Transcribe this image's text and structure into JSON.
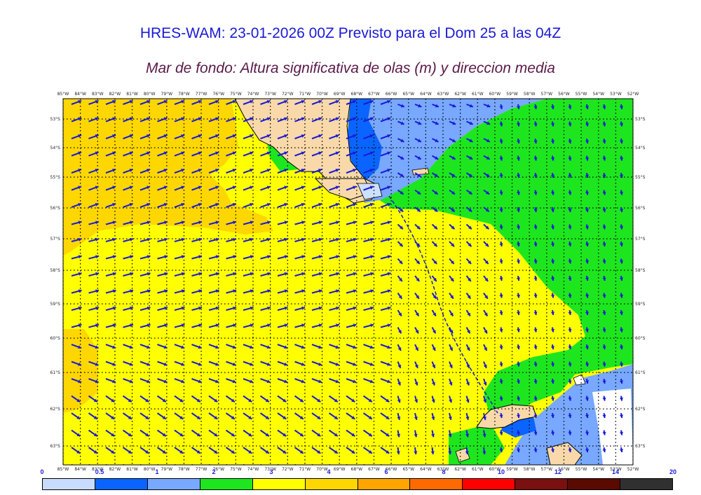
{
  "header": {
    "title": "HRES-WAM: 23-01-2026 00Z Previsto para el Dom 25 a las 04Z",
    "subtitle": "Mar de fondo: Altura significativa de olas (m) y direccion media"
  },
  "map": {
    "lon_labels": [
      "85°W",
      "84°W",
      "83°W",
      "82°W",
      "81°W",
      "80°W",
      "79°W",
      "78°W",
      "77°W",
      "76°W",
      "75°W",
      "74°W",
      "73°W",
      "72°W",
      "71°W",
      "70°W",
      "69°W",
      "68°W",
      "67°W",
      "66°W",
      "65°W",
      "64°W",
      "63°W",
      "62°W",
      "61°W",
      "60°W",
      "59°W",
      "58°W",
      "57°W",
      "56°W",
      "55°W",
      "54°W",
      "53°W",
      "52°W"
    ],
    "lat_labels": [
      "53°S",
      "54°S",
      "55°S",
      "56°S",
      "57°S",
      "58°S",
      "59°S",
      "60°S",
      "61°S",
      "62°S",
      "63°S"
    ],
    "colors": {
      "land": "#f9d9a9",
      "green": "#1ee61e",
      "yellow": "#ffff00",
      "gold": "#ffd700",
      "lightblue": "#78a8ff",
      "blue": "#0a64ff",
      "paleblue": "#cce0ff",
      "arrow": "#1a1ad6"
    }
  },
  "colorbar": {
    "labels": [
      "0",
      "0.5",
      "1",
      "2",
      "3",
      "4",
      "6",
      "8",
      "10",
      "12",
      "14",
      "20"
    ],
    "colors": [
      "#c8dcff",
      "#0a64ff",
      "#78a8ff",
      "#1ee61e",
      "#ffff00",
      "#ffd700",
      "#ffa500",
      "#ff6a00",
      "#ff0000",
      "#7a1010",
      "#5a0a00",
      "#303030"
    ]
  }
}
